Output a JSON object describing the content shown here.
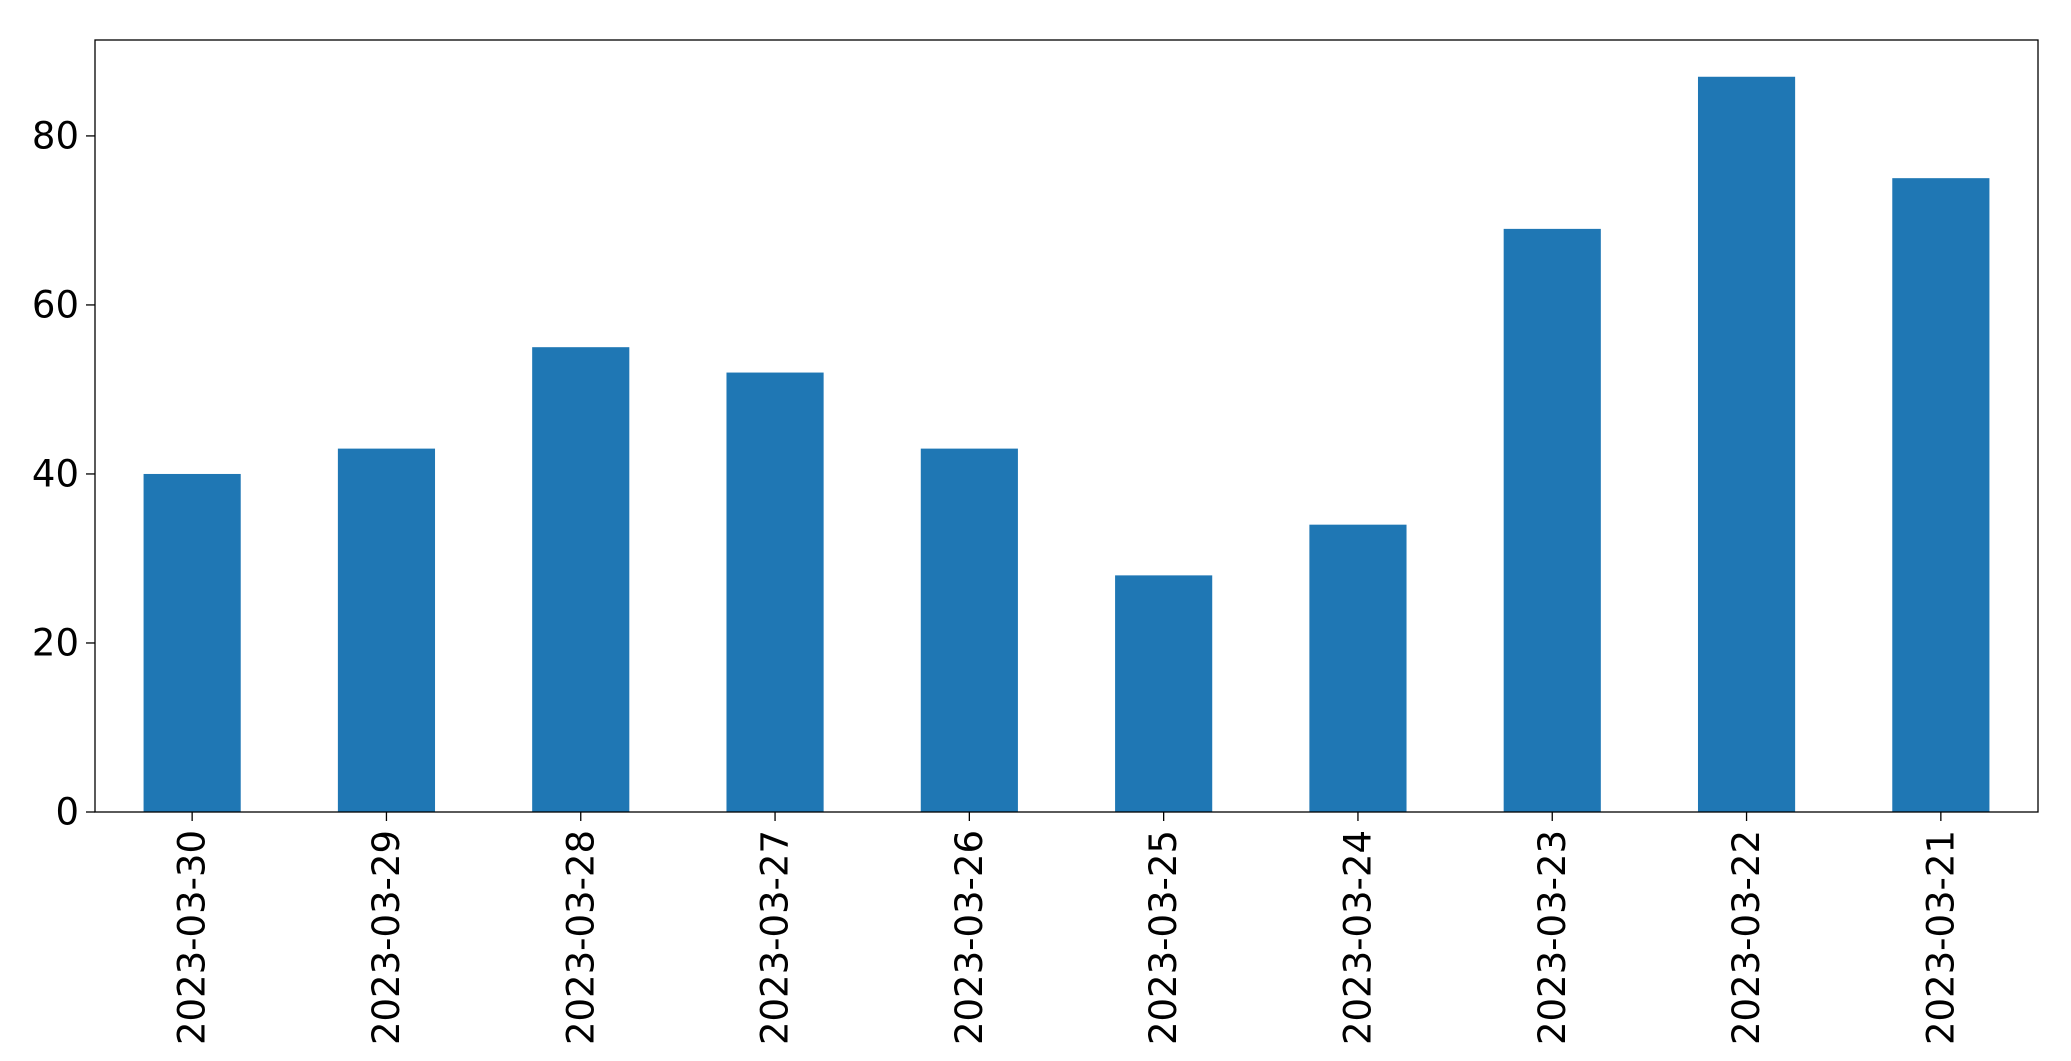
{
  "chart_data": {
    "type": "bar",
    "title": "",
    "xlabel": "",
    "ylabel": "",
    "categories": [
      "2023-03-30",
      "2023-03-29",
      "2023-03-28",
      "2023-03-27",
      "2023-03-26",
      "2023-03-25",
      "2023-03-24",
      "2023-03-23",
      "2023-03-22",
      "2023-03-21"
    ],
    "values": [
      40,
      43,
      55,
      52,
      43,
      28,
      34,
      69,
      87,
      75
    ],
    "ylim": [
      0,
      91.35
    ],
    "yticks": [
      0,
      20,
      40,
      60,
      80
    ],
    "grid": false,
    "legend": "none",
    "bar_color": "#1f77b4"
  }
}
